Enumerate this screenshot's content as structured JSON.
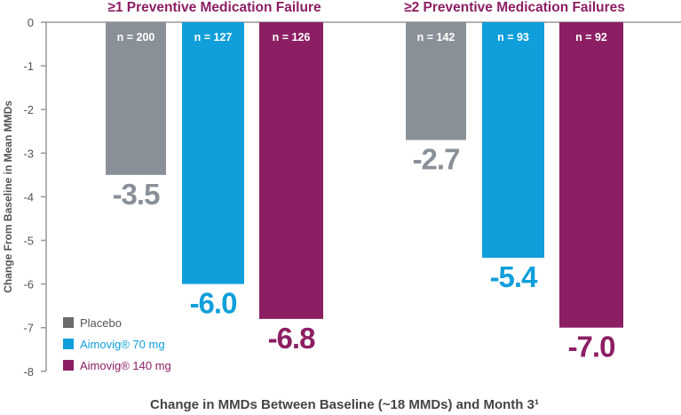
{
  "chart_data": {
    "type": "bar",
    "xlabel": "Change in MMDs Between Baseline (~18 MMDs) and Month 3¹",
    "ylabel": "Change From Baseline in Mean MMDs",
    "ylim": [
      -8,
      0
    ],
    "yticks": [
      "0",
      "-1",
      "-2",
      "-3",
      "-4",
      "-5",
      "-6",
      "-7",
      "-8"
    ],
    "grid": false,
    "legend": "bottom-left",
    "groups": [
      {
        "title": "≥1 Preventive Medication Failure",
        "values": [
          -3.5,
          -6.0,
          -6.8
        ],
        "labels": [
          "-3.5",
          "-6.0",
          "-6.8"
        ],
        "n": [
          "n = 200",
          "n = 127",
          "n = 126"
        ]
      },
      {
        "title": "≥2 Preventive Medication Failures",
        "values": [
          -2.7,
          -5.4,
          -7.0
        ],
        "labels": [
          "-2.7",
          "-5.4",
          "-7.0"
        ],
        "n": [
          "n = 142",
          "n = 93",
          "n = 92"
        ]
      }
    ],
    "series": [
      {
        "name": "Placebo",
        "color": "#8a9098",
        "label_color": "#8a9098",
        "legend_color": "#6b6b6b",
        "legend_text_color": "#555555"
      },
      {
        "name": "Aimovig® 70 mg",
        "color": "#109fda",
        "label_color": "#109fda",
        "legend_color": "#109fda",
        "legend_text_color": "#109fda"
      },
      {
        "name": "Aimovig® 140 mg",
        "color": "#8c1f63",
        "label_color": "#8c1f63",
        "legend_color": "#8c1f63",
        "legend_text_color": "#8c1f63"
      }
    ],
    "title_color": "#8c1f63"
  }
}
